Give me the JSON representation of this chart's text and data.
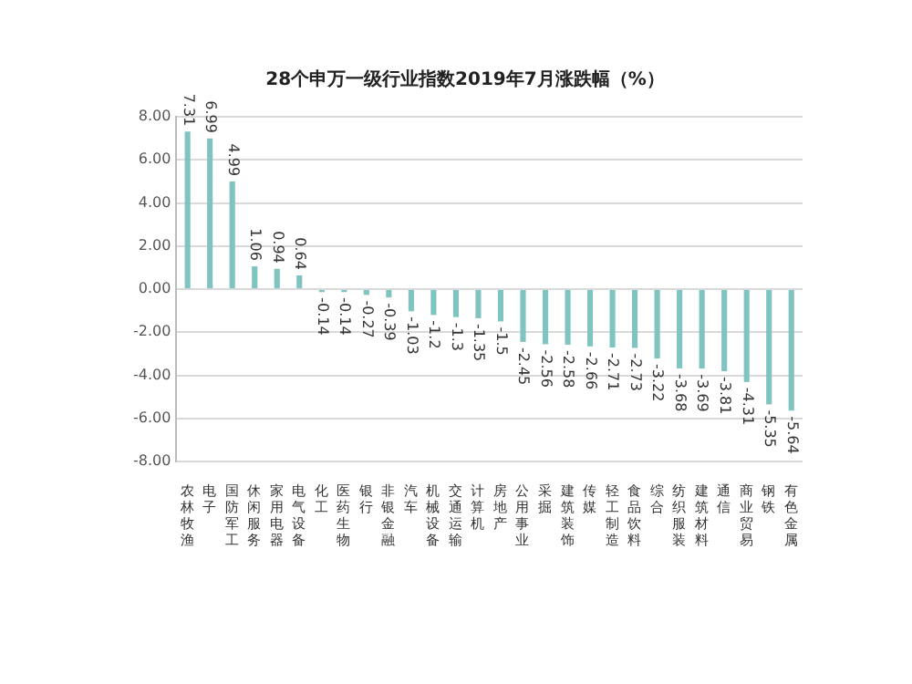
{
  "chart_data": {
    "type": "bar",
    "title": "28个申万一级行业指数2019年7月涨跌幅（%）",
    "categories": [
      "农林牧渔",
      "电子",
      "国防军工",
      "休闲服务",
      "家用电器",
      "电气设备",
      "化工",
      "医药生物",
      "银行",
      "非银金融",
      "汽车",
      "机械设备",
      "交通运输",
      "计算机",
      "房地产",
      "公用事业",
      "采掘",
      "建筑装饰",
      "传媒",
      "轻工制造",
      "食品饮料",
      "综合",
      "纺织服装",
      "建筑材料",
      "通信",
      "商业贸易",
      "钢铁",
      "有色金属"
    ],
    "values": [
      7.31,
      6.99,
      4.99,
      1.06,
      0.94,
      0.64,
      -0.14,
      -0.14,
      -0.27,
      -0.39,
      -1.03,
      -1.2,
      -1.3,
      -1.35,
      -1.5,
      -2.45,
      -2.56,
      -2.58,
      -2.66,
      -2.71,
      -2.73,
      -3.22,
      -3.68,
      -3.69,
      -3.81,
      -4.31,
      -5.35,
      -5.64
    ],
    "color": "#7fc4c0",
    "ylim": [
      -8,
      8
    ],
    "yticks": [
      {
        "value": -8,
        "label": "-8.00"
      },
      {
        "value": -6,
        "label": "-6.00"
      },
      {
        "value": -4,
        "label": "-4.00"
      },
      {
        "value": -2,
        "label": "-2.00"
      },
      {
        "value": 0,
        "label": "0.00"
      },
      {
        "value": 2,
        "label": "2.00"
      },
      {
        "value": 4,
        "label": "4.00"
      },
      {
        "value": 6,
        "label": "6.00"
      },
      {
        "value": 8,
        "label": "8.00"
      }
    ],
    "grid": "y",
    "data_labels": true,
    "legend": false
  }
}
